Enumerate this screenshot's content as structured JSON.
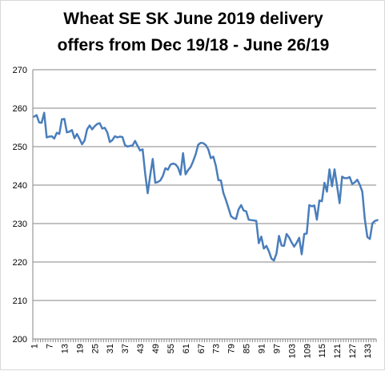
{
  "chart_data": {
    "type": "line",
    "title_lines": [
      "Wheat SE SK June 2019 delivery",
      "offers from Dec 19/18 - June 26/19"
    ],
    "xlabel": "",
    "ylabel": "",
    "ylim": [
      200,
      270
    ],
    "yticks": [
      200,
      210,
      220,
      230,
      240,
      250,
      260,
      270
    ],
    "xticks": [
      "1",
      "7",
      "13",
      "19",
      "25",
      "31",
      "37",
      "43",
      "49",
      "55",
      "61",
      "67",
      "73",
      "79",
      "85",
      "91",
      "97",
      "103",
      "109",
      "115",
      "121",
      "127",
      "133"
    ],
    "xlim": [
      1,
      136
    ],
    "grid": true,
    "legend": "none",
    "line_color": "#4a7ebb",
    "series": [
      {
        "values": [
          257.8,
          258.2,
          256.3,
          256.2,
          258.8,
          252.4,
          252.6,
          252.7,
          252.1,
          253.6,
          253.3,
          257.1,
          257.2,
          253.7,
          253.9,
          254.3,
          252.2,
          253.3,
          252.0,
          250.6,
          251.6,
          254.5,
          255.5,
          254.5,
          255.3,
          255.9,
          256.1,
          254.7,
          254.9,
          253.7,
          251.2,
          251.7,
          252.7,
          252.4,
          252.6,
          252.5,
          250.4,
          250.0,
          250.2,
          250.3,
          251.5,
          250.2,
          249.0,
          249.3,
          243.0,
          237.9,
          242.6,
          246.8,
          240.6,
          240.8,
          241.2,
          242.4,
          244.4,
          244.0,
          245.3,
          245.6,
          245.4,
          244.6,
          242.7,
          248.3,
          242.8,
          243.9,
          244.7,
          246.2,
          248.0,
          250.5,
          251.0,
          250.9,
          250.4,
          249.3,
          247.0,
          247.4,
          245.0,
          241.3,
          241.2,
          237.9,
          236.1,
          234.0,
          231.9,
          231.4,
          231.2,
          233.7,
          234.8,
          233.4,
          233.2,
          231.0,
          230.9,
          230.8,
          230.7,
          224.9,
          226.6,
          223.5,
          224.2,
          222.8,
          220.9,
          220.4,
          222.2,
          226.8,
          224.3,
          224.2,
          227.3,
          226.4,
          225.1,
          224.0,
          225.0,
          226.3,
          222.0,
          227.3,
          227.4,
          234.8,
          234.5,
          234.7,
          231.0,
          236.0,
          235.8,
          240.6,
          238.3,
          244.1,
          239.7,
          244.1,
          239.8,
          235.3,
          242.2,
          241.8,
          241.8,
          242.1,
          240.3,
          240.7,
          241.4,
          240.1,
          238.3,
          231.1,
          226.5,
          226.0,
          230.1,
          230.7,
          230.9
        ]
      }
    ]
  }
}
